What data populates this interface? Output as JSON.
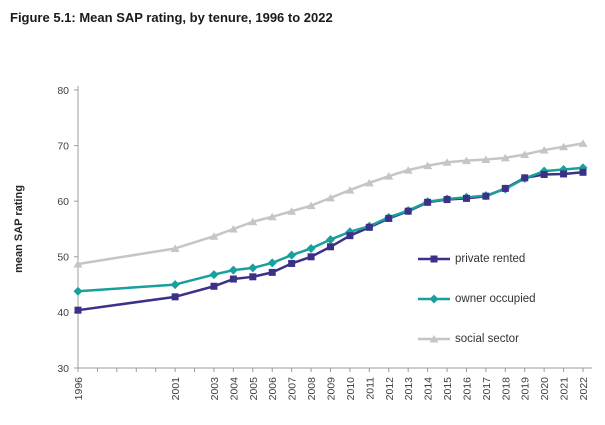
{
  "figure": {
    "title": "Figure 5.1: Mean SAP rating, by tenure, 1996 to 2022"
  },
  "chart_data": {
    "type": "line",
    "title": "Figure 5.1: Mean SAP rating, by tenure, 1996 to 2022",
    "xlabel": "",
    "ylabel": "mean SAP rating",
    "ylim": [
      30,
      80
    ],
    "yticks": [
      30,
      40,
      50,
      60,
      70,
      80
    ],
    "x_years": [
      1996,
      2001,
      2003,
      2004,
      2005,
      2006,
      2007,
      2008,
      2009,
      2010,
      2011,
      2012,
      2013,
      2014,
      2015,
      2016,
      2017,
      2018,
      2019,
      2020,
      2021,
      2022
    ],
    "categories": [
      "1996",
      "2001",
      "2003",
      "2004",
      "2005",
      "2006",
      "2007",
      "2008",
      "2009",
      "2010",
      "2011",
      "2012",
      "2013",
      "2014",
      "2015",
      "2016",
      "2017",
      "2018",
      "2019",
      "2020",
      "2021",
      "2022"
    ],
    "grid": false,
    "legend_position": "middle-right",
    "series": [
      {
        "name": "private rented",
        "marker": "square",
        "color": "#3B3189",
        "values": [
          40.4,
          42.8,
          44.7,
          46.0,
          46.4,
          47.2,
          48.8,
          50.0,
          51.8,
          53.8,
          55.3,
          56.9,
          58.2,
          59.8,
          60.3,
          60.5,
          60.9,
          62.3,
          64.2,
          64.8,
          64.9,
          65.2
        ]
      },
      {
        "name": "owner occupied",
        "marker": "diamond",
        "color": "#17A09C",
        "values": [
          43.8,
          45.0,
          46.8,
          47.6,
          48.0,
          48.9,
          50.3,
          51.5,
          53.1,
          54.5,
          55.5,
          57.1,
          58.3,
          59.9,
          60.4,
          60.7,
          61.0,
          62.2,
          64.1,
          65.4,
          65.7,
          66.0
        ]
      },
      {
        "name": "social sector",
        "marker": "triangle",
        "color": "#C6C5C3",
        "values": [
          48.7,
          51.5,
          53.7,
          55.0,
          56.3,
          57.2,
          58.2,
          59.2,
          60.6,
          62.0,
          63.3,
          64.5,
          65.6,
          66.4,
          67.0,
          67.3,
          67.5,
          67.8,
          68.4,
          69.2,
          69.8,
          70.4
        ]
      }
    ]
  },
  "colors": {
    "axis_line": "#9C9C9C",
    "tick_label": "#404040",
    "title_text": "#1A1A1A"
  }
}
